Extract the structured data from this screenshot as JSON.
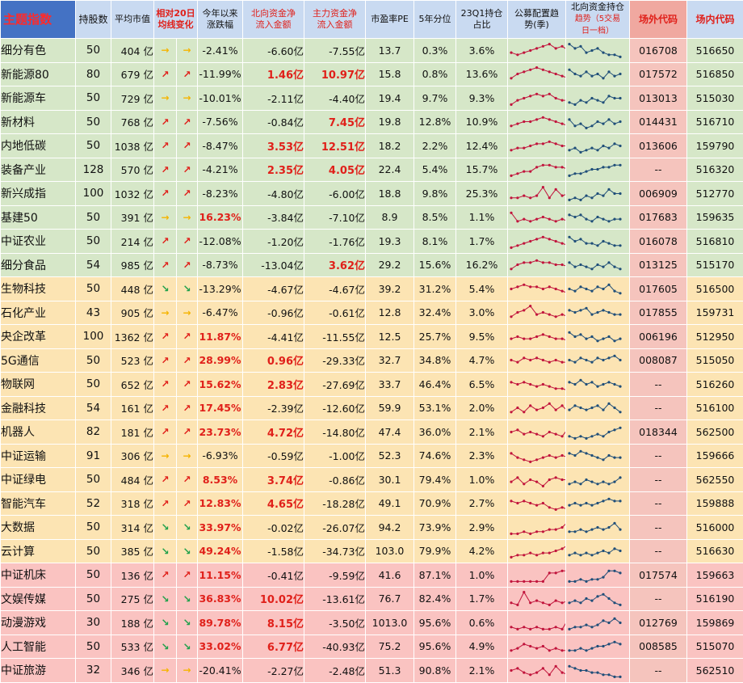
{
  "header": {
    "title": "主题指数",
    "count": "持股数",
    "mcap": "平均市值",
    "ma20_line1": "相对20日",
    "ma20_line2": "均线变化",
    "ytd_line1": "今年以来",
    "ytd_line2": "涨跌幅",
    "north_line1": "北向资金净",
    "north_line2": "流入金额",
    "main_line1": "主力资金净",
    "main_line2": "流入金额",
    "pe": "市盈率PE",
    "pct5y": "5年分位",
    "q1_line1": "23Q1持仓",
    "q1_line2": "占比",
    "fund_line1": "公募配置趋",
    "fund_line2": "势(季)",
    "nb_line1": "北向资金持仓",
    "nb_line2": "趋势（5交易",
    "nb_line3": "日一档）",
    "outcode": "场外代码",
    "incode": "场内代码"
  },
  "arrow_glyphs": {
    "up": "↗",
    "flat": "→",
    "down": "↘"
  },
  "colors": {
    "up": "#e0201a",
    "flat": "#f5b400",
    "down": "#1fa04a",
    "fund_line": "#c1143c",
    "north_line": "#1f4e79"
  },
  "rows": [
    {
      "name": "细分有色",
      "count": "50",
      "mcap": "404 亿",
      "dir": "flat",
      "ytd": "-2.41%",
      "ytd_hot": false,
      "north": "-6.60亿",
      "north_hot": false,
      "main": "-7.55亿",
      "main_hot": false,
      "pe": "13.7",
      "pct5y": "0.3%",
      "q1": "3.6%",
      "out": "016708",
      "inn": "516650",
      "g": 1,
      "fund": [
        4,
        3,
        4,
        5,
        6,
        7,
        8,
        6,
        7,
        5
      ],
      "nb": [
        8,
        6,
        7,
        4,
        5,
        6,
        4,
        3,
        3,
        2
      ]
    },
    {
      "name": "新能源80",
      "count": "80",
      "mcap": "679 亿",
      "dir": "up",
      "ytd": "-11.99%",
      "ytd_hot": false,
      "north": "1.46亿",
      "north_hot": true,
      "main": "10.97亿",
      "main_hot": true,
      "pe": "15.8",
      "pct5y": "0.8%",
      "q1": "13.6%",
      "out": "017572",
      "inn": "516850",
      "g": 1,
      "fund": [
        3,
        5,
        6,
        7,
        8,
        7,
        6,
        5,
        4,
        3
      ],
      "nb": [
        7,
        5,
        4,
        6,
        4,
        5,
        3,
        6,
        4,
        5
      ]
    },
    {
      "name": "新能源车",
      "count": "50",
      "mcap": "729 亿",
      "dir": "flat",
      "ytd": "-10.01%",
      "ytd_hot": false,
      "north": "-2.11亿",
      "north_hot": false,
      "main": "-4.40亿",
      "main_hot": false,
      "pe": "19.4",
      "pct5y": "9.7%",
      "q1": "9.3%",
      "out": "013013",
      "inn": "515030",
      "g": 1,
      "fund": [
        2,
        4,
        5,
        6,
        7,
        6,
        7,
        5,
        4,
        4
      ],
      "nb": [
        3,
        2,
        4,
        3,
        5,
        4,
        3,
        6,
        5,
        5
      ]
    },
    {
      "name": "新材料",
      "count": "50",
      "mcap": "768 亿",
      "dir": "up",
      "ytd": "-7.56%",
      "ytd_hot": false,
      "north": "-0.84亿",
      "north_hot": false,
      "main": "7.45亿",
      "main_hot": true,
      "pe": "19.8",
      "pct5y": "12.8%",
      "q1": "10.9%",
      "out": "014431",
      "inn": "516710",
      "g": 1,
      "fund": [
        3,
        4,
        5,
        5,
        6,
        7,
        6,
        5,
        4,
        3
      ],
      "nb": [
        6,
        3,
        4,
        2,
        3,
        5,
        4,
        6,
        4,
        5
      ]
    },
    {
      "name": "内地低碳",
      "count": "50",
      "mcap": "1038 亿",
      "dir": "up",
      "ytd": "-8.47%",
      "ytd_hot": false,
      "north": "3.53亿",
      "north_hot": true,
      "main": "12.51亿",
      "main_hot": true,
      "pe": "18.2",
      "pct5y": "2.2%",
      "q1": "12.4%",
      "out": "013606",
      "inn": "159790",
      "g": 1,
      "fund": [
        3,
        4,
        4,
        5,
        6,
        6,
        7,
        6,
        5,
        5
      ],
      "nb": [
        3,
        4,
        2,
        3,
        4,
        3,
        5,
        4,
        6,
        5
      ]
    },
    {
      "name": "装备产业",
      "count": "128",
      "mcap": "570 亿",
      "dir": "up",
      "ytd": "-4.21%",
      "ytd_hot": false,
      "north": "2.35亿",
      "north_hot": true,
      "main": "4.05亿",
      "main_hot": true,
      "pe": "22.4",
      "pct5y": "5.4%",
      "q1": "15.7%",
      "out": "--",
      "inn": "516320",
      "g": 1,
      "fund": [
        2,
        3,
        4,
        4,
        6,
        7,
        7,
        6,
        6,
        5
      ],
      "nb": [
        2,
        3,
        3,
        4,
        5,
        5,
        6,
        6,
        7,
        7
      ]
    },
    {
      "name": "新兴成指",
      "count": "100",
      "mcap": "1032 亿",
      "dir": "up",
      "ytd": "-8.23%",
      "ytd_hot": false,
      "north": "-4.80亿",
      "north_hot": false,
      "main": "-6.00亿",
      "main_hot": false,
      "pe": "18.8",
      "pct5y": "9.8%",
      "q1": "25.3%",
      "out": "006909",
      "inn": "512770",
      "g": 1,
      "fund": [
        3,
        3,
        4,
        3,
        4,
        8,
        3,
        7,
        4,
        5
      ],
      "nb": [
        2,
        3,
        2,
        4,
        3,
        5,
        4,
        7,
        5,
        5
      ]
    },
    {
      "name": "基建50",
      "count": "50",
      "mcap": "391 亿",
      "dir": "flat",
      "ytd": "16.23%",
      "ytd_hot": true,
      "north": "-3.84亿",
      "north_hot": false,
      "main": "-7.10亿",
      "main_hot": false,
      "pe": "8.9",
      "pct5y": "8.5%",
      "q1": "1.1%",
      "out": "017683",
      "inn": "159635",
      "g": 1,
      "fund": [
        7,
        3,
        4,
        3,
        4,
        5,
        4,
        3,
        4,
        3
      ],
      "nb": [
        6,
        5,
        6,
        4,
        3,
        5,
        4,
        3,
        4,
        4
      ]
    },
    {
      "name": "中证农业",
      "count": "50",
      "mcap": "214 亿",
      "dir": "up",
      "ytd": "-12.08%",
      "ytd_hot": false,
      "north": "-1.20亿",
      "north_hot": false,
      "main": "-1.76亿",
      "main_hot": false,
      "pe": "19.3",
      "pct5y": "8.1%",
      "q1": "1.7%",
      "out": "016078",
      "inn": "516810",
      "g": 1,
      "fund": [
        2,
        3,
        4,
        5,
        6,
        7,
        6,
        5,
        4,
        3
      ],
      "nb": [
        7,
        5,
        6,
        4,
        4,
        3,
        5,
        4,
        3,
        3
      ]
    },
    {
      "name": "细分食品",
      "count": "54",
      "mcap": "985 亿",
      "dir": "up",
      "ytd": "-8.73%",
      "ytd_hot": false,
      "north": "-13.04亿",
      "north_hot": false,
      "main": "3.62亿",
      "main_hot": true,
      "pe": "29.2",
      "pct5y": "15.6%",
      "q1": "16.2%",
      "out": "013125",
      "inn": "515170",
      "g": 1,
      "fund": [
        3,
        5,
        6,
        6,
        7,
        6,
        6,
        5,
        5,
        4
      ],
      "nb": [
        6,
        4,
        5,
        4,
        3,
        5,
        4,
        6,
        4,
        3
      ]
    },
    {
      "name": "生物科技",
      "count": "50",
      "mcap": "448 亿",
      "dir": "down",
      "ytd": "-13.29%",
      "ytd_hot": false,
      "north": "-4.67亿",
      "north_hot": false,
      "main": "-4.67亿",
      "main_hot": false,
      "pe": "39.2",
      "pct5y": "31.2%",
      "q1": "5.4%",
      "out": "017605",
      "inn": "516500",
      "g": 2,
      "fund": [
        5,
        6,
        7,
        6,
        6,
        5,
        6,
        5,
        4,
        3
      ],
      "nb": [
        5,
        4,
        6,
        5,
        4,
        6,
        5,
        7,
        4,
        3
      ]
    },
    {
      "name": "石化产业",
      "count": "43",
      "mcap": "905 亿",
      "dir": "flat",
      "ytd": "-6.47%",
      "ytd_hot": false,
      "north": "-0.96亿",
      "north_hot": false,
      "main": "-0.61亿",
      "main_hot": false,
      "pe": "12.8",
      "pct5y": "32.4%",
      "q1": "3.0%",
      "out": "017855",
      "inn": "159731",
      "g": 2,
      "fund": [
        3,
        5,
        6,
        8,
        4,
        5,
        4,
        3,
        4,
        3
      ],
      "nb": [
        6,
        5,
        6,
        7,
        4,
        5,
        6,
        5,
        4,
        4
      ]
    },
    {
      "name": "央企改革",
      "count": "100",
      "mcap": "1362 亿",
      "dir": "up",
      "ytd": "11.87%",
      "ytd_hot": true,
      "north": "-4.41亿",
      "north_hot": false,
      "main": "-11.55亿",
      "main_hot": false,
      "pe": "12.5",
      "pct5y": "25.7%",
      "q1": "9.5%",
      "out": "006196",
      "inn": "512950",
      "g": 2,
      "fund": [
        4,
        5,
        4,
        4,
        5,
        6,
        5,
        4,
        4,
        3
      ],
      "nb": [
        7,
        5,
        6,
        4,
        5,
        3,
        4,
        5,
        3,
        4
      ]
    },
    {
      "name": "5G通信",
      "count": "50",
      "mcap": "523 亿",
      "dir": "up",
      "ytd": "28.99%",
      "ytd_hot": true,
      "north": "0.96亿",
      "north_hot": true,
      "main": "-29.33亿",
      "main_hot": false,
      "pe": "32.7",
      "pct5y": "34.8%",
      "q1": "4.7%",
      "out": "008087",
      "inn": "515050",
      "g": 2,
      "fund": [
        5,
        4,
        6,
        5,
        6,
        5,
        4,
        5,
        4,
        4
      ],
      "nb": [
        5,
        4,
        6,
        5,
        4,
        6,
        5,
        6,
        7,
        5
      ]
    },
    {
      "name": "物联网",
      "count": "50",
      "mcap": "652 亿",
      "dir": "up",
      "ytd": "15.62%",
      "ytd_hot": true,
      "north": "2.83亿",
      "north_hot": true,
      "main": "-27.69亿",
      "main_hot": false,
      "pe": "33.7",
      "pct5y": "46.4%",
      "q1": "6.5%",
      "out": "--",
      "inn": "516260",
      "g": 2,
      "fund": [
        6,
        5,
        6,
        5,
        4,
        5,
        4,
        3,
        3,
        2
      ],
      "nb": [
        6,
        5,
        7,
        5,
        6,
        4,
        5,
        6,
        5,
        4
      ]
    },
    {
      "name": "金融科技",
      "count": "54",
      "mcap": "161 亿",
      "dir": "up",
      "ytd": "17.45%",
      "ytd_hot": true,
      "north": "-2.39亿",
      "north_hot": false,
      "main": "-12.60亿",
      "main_hot": false,
      "pe": "59.9",
      "pct5y": "53.1%",
      "q1": "2.0%",
      "out": "--",
      "inn": "516100",
      "g": 2,
      "fund": [
        3,
        5,
        3,
        6,
        4,
        5,
        7,
        4,
        6,
        3
      ],
      "nb": [
        4,
        6,
        5,
        4,
        5,
        6,
        4,
        7,
        5,
        3
      ]
    },
    {
      "name": "机器人",
      "count": "82",
      "mcap": "181 亿",
      "dir": "up",
      "ytd": "23.73%",
      "ytd_hot": true,
      "north": "4.72亿",
      "north_hot": true,
      "main": "-14.80亿",
      "main_hot": false,
      "pe": "47.4",
      "pct5y": "36.0%",
      "q1": "2.1%",
      "out": "018344",
      "inn": "562500",
      "g": 2,
      "fund": [
        5,
        6,
        4,
        5,
        4,
        3,
        5,
        4,
        3,
        7
      ],
      "nb": [
        3,
        2,
        3,
        2,
        3,
        4,
        3,
        5,
        6,
        7
      ]
    },
    {
      "name": "中证运输",
      "count": "91",
      "mcap": "306 亿",
      "dir": "flat",
      "ytd": "-6.93%",
      "ytd_hot": false,
      "north": "-0.59亿",
      "north_hot": false,
      "main": "-1.00亿",
      "main_hot": false,
      "pe": "52.3",
      "pct5y": "74.6%",
      "q1": "2.3%",
      "out": "--",
      "inn": "159666",
      "g": 2,
      "fund": [
        6,
        4,
        3,
        2,
        3,
        4,
        5,
        4,
        5,
        4
      ],
      "nb": [
        6,
        5,
        7,
        6,
        5,
        4,
        3,
        5,
        4,
        4
      ]
    },
    {
      "name": "中证绿电",
      "count": "50",
      "mcap": "484 亿",
      "dir": "up",
      "ytd": "8.53%",
      "ytd_hot": true,
      "north": "3.74亿",
      "north_hot": true,
      "main": "-0.86亿",
      "main_hot": false,
      "pe": "30.1",
      "pct5y": "79.4%",
      "q1": "1.0%",
      "out": "--",
      "inn": "562550",
      "g": 2,
      "fund": [
        4,
        6,
        3,
        5,
        4,
        2,
        5,
        6,
        5,
        5
      ],
      "nb": [
        3,
        4,
        3,
        5,
        4,
        3,
        4,
        3,
        4,
        6
      ]
    },
    {
      "name": "智能汽车",
      "count": "52",
      "mcap": "318 亿",
      "dir": "up",
      "ytd": "12.83%",
      "ytd_hot": true,
      "north": "4.65亿",
      "north_hot": true,
      "main": "-18.28亿",
      "main_hot": false,
      "pe": "49.1",
      "pct5y": "70.9%",
      "q1": "2.7%",
      "out": "--",
      "inn": "159888",
      "g": 2,
      "fund": [
        6,
        5,
        6,
        5,
        4,
        5,
        3,
        2,
        3,
        2
      ],
      "nb": [
        4,
        5,
        4,
        5,
        4,
        5,
        6,
        7,
        6,
        6
      ]
    },
    {
      "name": "大数据",
      "count": "50",
      "mcap": "314 亿",
      "dir": "down",
      "ytd": "33.97%",
      "ytd_hot": true,
      "north": "-0.02亿",
      "north_hot": false,
      "main": "-26.07亿",
      "main_hot": false,
      "pe": "94.2",
      "pct5y": "73.9%",
      "q1": "2.9%",
      "out": "--",
      "inn": "516000",
      "g": 2,
      "fund": [
        2,
        2,
        3,
        2,
        3,
        3,
        4,
        4,
        5,
        8
      ],
      "nb": [
        3,
        3,
        4,
        3,
        4,
        5,
        4,
        5,
        7,
        4
      ]
    },
    {
      "name": "云计算",
      "count": "50",
      "mcap": "385 亿",
      "dir": "down",
      "ytd": "49.24%",
      "ytd_hot": true,
      "north": "-1.58亿",
      "north_hot": false,
      "main": "-34.73亿",
      "main_hot": false,
      "pe": "103.0",
      "pct5y": "79.9%",
      "q1": "4.2%",
      "out": "--",
      "inn": "516630",
      "g": 2,
      "fund": [
        2,
        3,
        3,
        4,
        3,
        4,
        4,
        5,
        6,
        8
      ],
      "nb": [
        3,
        4,
        3,
        4,
        3,
        4,
        5,
        4,
        6,
        5
      ]
    },
    {
      "name": "中证机床",
      "count": "50",
      "mcap": "136 亿",
      "dir": "up",
      "ytd": "11.15%",
      "ytd_hot": true,
      "north": "-0.41亿",
      "north_hot": false,
      "main": "-9.59亿",
      "main_hot": false,
      "pe": "41.6",
      "pct5y": "87.1%",
      "q1": "1.0%",
      "out": "017574",
      "inn": "159663",
      "g": 3,
      "fund": [
        2,
        2,
        2,
        2,
        2,
        2,
        6,
        6,
        7,
        7
      ],
      "nb": [
        2,
        2,
        3,
        2,
        3,
        3,
        4,
        7,
        7,
        6
      ]
    },
    {
      "name": "文娱传媒",
      "count": "50",
      "mcap": "275 亿",
      "dir": "down",
      "ytd": "36.83%",
      "ytd_hot": true,
      "north": "10.02亿",
      "north_hot": true,
      "main": "-13.61亿",
      "main_hot": false,
      "pe": "76.7",
      "pct5y": "82.4%",
      "q1": "1.7%",
      "out": "--",
      "inn": "516190",
      "g": 3,
      "fund": [
        3,
        2,
        8,
        3,
        4,
        3,
        2,
        4,
        3,
        4
      ],
      "nb": [
        3,
        4,
        3,
        5,
        4,
        6,
        7,
        5,
        3,
        2
      ]
    },
    {
      "name": "动漫游戏",
      "count": "30",
      "mcap": "188 亿",
      "dir": "down",
      "ytd": "89.78%",
      "ytd_hot": true,
      "north": "8.15亿",
      "north_hot": true,
      "main": "-3.50亿",
      "main_hot": false,
      "pe": "1013.0",
      "pct5y": "95.6%",
      "q1": "0.6%",
      "out": "012769",
      "inn": "159869",
      "g": 3,
      "fund": [
        3,
        2,
        3,
        2,
        3,
        2,
        2,
        3,
        2,
        7
      ],
      "nb": [
        2,
        3,
        3,
        4,
        3,
        4,
        6,
        5,
        7,
        5
      ]
    },
    {
      "name": "人工智能",
      "count": "50",
      "mcap": "533 亿",
      "dir": "down",
      "ytd": "33.02%",
      "ytd_hot": true,
      "north": "6.77亿",
      "north_hot": true,
      "main": "-40.93亿",
      "main_hot": false,
      "pe": "75.2",
      "pct5y": "95.6%",
      "q1": "4.9%",
      "out": "008585",
      "inn": "515070",
      "g": 3,
      "fund": [
        3,
        4,
        6,
        5,
        4,
        5,
        3,
        4,
        3,
        3
      ],
      "nb": [
        3,
        3,
        4,
        3,
        4,
        5,
        5,
        6,
        7,
        6
      ]
    },
    {
      "name": "中证旅游",
      "count": "32",
      "mcap": "346 亿",
      "dir": "flat",
      "ytd": "-20.41%",
      "ytd_hot": false,
      "north": "-2.27亿",
      "north_hot": false,
      "main": "-2.48亿",
      "main_hot": false,
      "pe": "51.3",
      "pct5y": "90.8%",
      "q1": "2.1%",
      "out": "--",
      "inn": "562510",
      "g": 3,
      "fund": [
        5,
        6,
        4,
        3,
        4,
        6,
        3,
        7,
        4,
        3
      ],
      "nb": [
        7,
        6,
        5,
        5,
        4,
        4,
        3,
        3,
        2,
        2
      ]
    }
  ]
}
